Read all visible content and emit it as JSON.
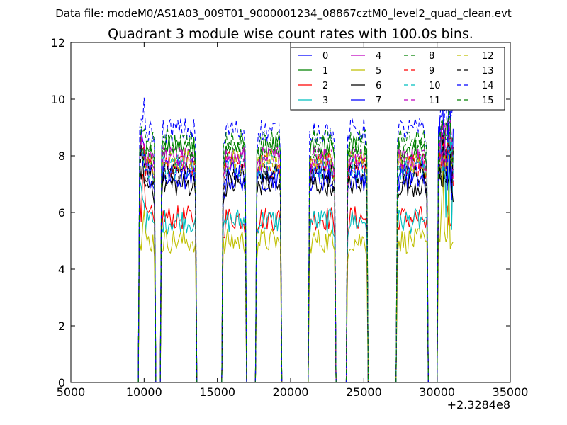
{
  "chart_data": {
    "type": "line",
    "suptitle": "Data file: modeM0/AS1A03_009T01_9000001234_08867cztM0_level2_quad_clean.evt",
    "title": "Quadrant 3 module wise count rates with 100.0s bins.",
    "xlabel": "",
    "ylabel": "",
    "xlim": [
      5000,
      35000
    ],
    "ylim": [
      0,
      12
    ],
    "x_offset_label": "+2.3284e8",
    "x_ticks": [
      5000,
      10000,
      15000,
      20000,
      25000,
      30000,
      35000
    ],
    "x_tick_labels": [
      "5000",
      "10000",
      "15000",
      "20000",
      "25000",
      "30000",
      "35000"
    ],
    "y_ticks": [
      0,
      2,
      4,
      6,
      8,
      10,
      12
    ],
    "y_tick_labels": [
      "0",
      "2",
      "4",
      "6",
      "8",
      "10",
      "12"
    ],
    "grid": false,
    "legend_position": "top-right",
    "legend_columns": 4,
    "segments": [
      {
        "start": 9650,
        "end": 10750
      },
      {
        "start": 11150,
        "end": 13550
      },
      {
        "start": 15400,
        "end": 16950
      },
      {
        "start": 17650,
        "end": 19350
      },
      {
        "start": 21250,
        "end": 23000
      },
      {
        "start": 23850,
        "end": 25250
      },
      {
        "start": 27250,
        "end": 29300
      },
      {
        "start": 30100,
        "end": 31100
      }
    ],
    "series": [
      {
        "name": "0",
        "level": 7.5,
        "spike": 9.4,
        "color": "#0000ff",
        "dash": "solid"
      },
      {
        "name": "1",
        "level": 8.3,
        "spike": 9.1,
        "color": "#008000",
        "dash": "solid"
      },
      {
        "name": "2",
        "level": 5.8,
        "spike": 8.6,
        "color": "#ff0000",
        "dash": "solid"
      },
      {
        "name": "3",
        "level": 5.7,
        "spike": 8.4,
        "color": "#00bfbf",
        "dash": "solid"
      },
      {
        "name": "4",
        "level": 7.9,
        "spike": 9.0,
        "color": "#bf00bf",
        "dash": "solid"
      },
      {
        "name": "5",
        "level": 5.0,
        "spike": 7.2,
        "color": "#bfbf00",
        "dash": "solid"
      },
      {
        "name": "6",
        "level": 7.0,
        "spike": 8.0,
        "color": "#000000",
        "dash": "solid"
      },
      {
        "name": "7",
        "level": 7.2,
        "spike": 9.6,
        "color": "#0000ff",
        "dash": "solid"
      },
      {
        "name": "8",
        "level": 8.1,
        "spike": 9.0,
        "color": "#008000",
        "dash": "dashed"
      },
      {
        "name": "9",
        "level": 7.7,
        "spike": 8.8,
        "color": "#ff0000",
        "dash": "dashed"
      },
      {
        "name": "10",
        "level": 7.6,
        "spike": 8.9,
        "color": "#00bfbf",
        "dash": "dashed"
      },
      {
        "name": "11",
        "level": 7.9,
        "spike": 9.1,
        "color": "#bf00bf",
        "dash": "dashed"
      },
      {
        "name": "12",
        "level": 7.8,
        "spike": 8.7,
        "color": "#bfbf00",
        "dash": "dashed"
      },
      {
        "name": "13",
        "level": 7.3,
        "spike": 8.5,
        "color": "#000000",
        "dash": "dashed"
      },
      {
        "name": "14",
        "level": 8.9,
        "spike": 10.2,
        "color": "#0000ff",
        "dash": "dashed"
      },
      {
        "name": "15",
        "level": 8.5,
        "spike": 9.5,
        "color": "#008000",
        "dash": "dashed"
      }
    ]
  }
}
